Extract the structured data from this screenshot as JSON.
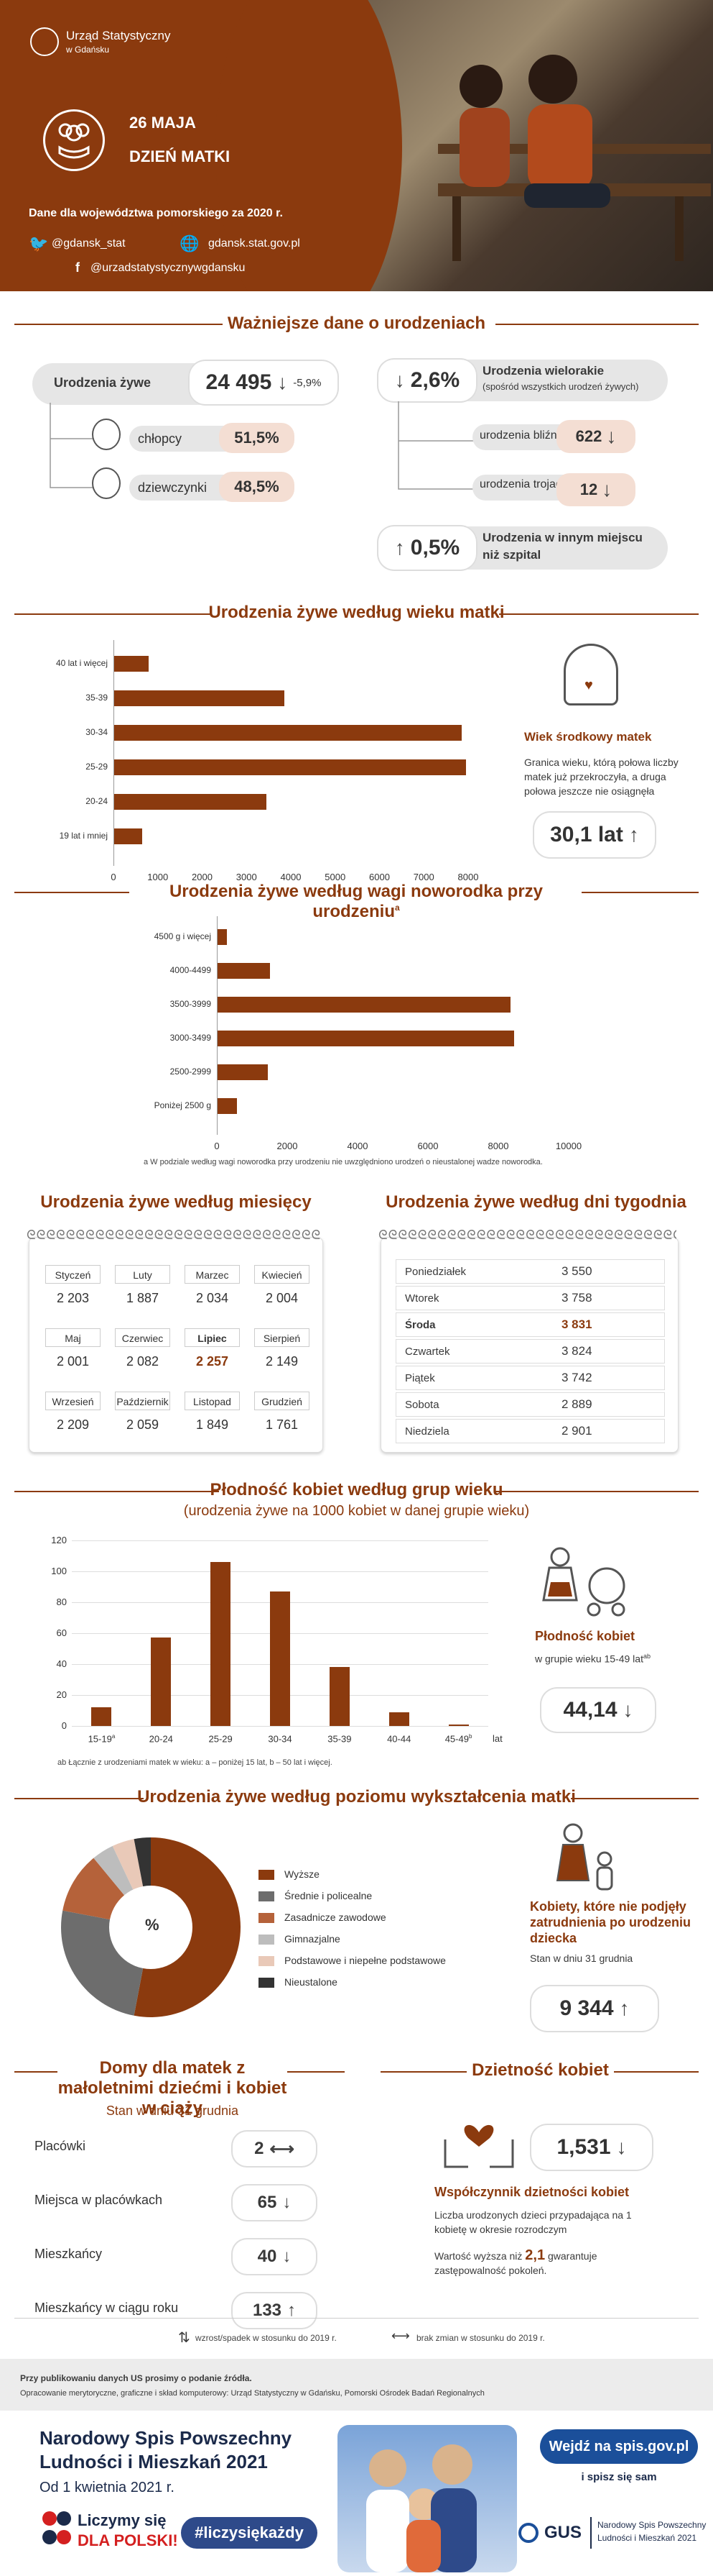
{
  "header": {
    "org": "Urząd Statystyczny",
    "org_sub": "w Gdańsku",
    "date": "26 MAJA",
    "event": "DZIEŃ MATKI",
    "data_note": "Dane dla województwa pomorskiego za 2020 r.",
    "twitter": "@gdansk_stat",
    "website": "gdansk.stat.gov.pl",
    "facebook": "@urzadstatystycznywgdansku"
  },
  "key_data": {
    "title": "Ważniejsze dane o urodzeniach",
    "live_births_label": "Urodzenia żywe",
    "live_births_value": "24 495",
    "live_births_change": "-5,9%",
    "boys_label": "chłopcy",
    "boys_value": "51,5%",
    "girls_label": "dziewczynki",
    "girls_value": "48,5%",
    "multiple_value": "2,6%",
    "multiple_label": "Urodzenia wielorakie",
    "multiple_sub": "(spośród wszystkich urodzeń żywych)",
    "twins_label": "urodzenia bliźniacze",
    "twins_value": "622",
    "triplets_label": "urodzenia trojacze",
    "triplets_value": "12",
    "outside_value": "0,5%",
    "outside_label": "Urodzenia w innym miejscu niż szpital"
  },
  "age_chart": {
    "title": "Urodzenia żywe według wieku matki",
    "median_title": "Wiek środkowy matek",
    "median_desc": "Granica wieku, którą połowa liczby matek już przekroczyła, a druga połowa jeszcze nie osiągnęła",
    "median_value": "30,1 lat"
  },
  "weight_chart": {
    "title": "Urodzenia żywe według wagi noworodka przy urodzeniu",
    "title_sup": "a",
    "footnote": "a W podziale według wagi noworodka przy urodzeniu nie uwzględniono urodzeń o nieustalonej wadze noworodka."
  },
  "months": {
    "title": "Urodzenia żywe według miesięcy",
    "items": [
      {
        "name": "Styczeń",
        "value": "2 203"
      },
      {
        "name": "Luty",
        "value": "1 887"
      },
      {
        "name": "Marzec",
        "value": "2 034"
      },
      {
        "name": "Kwiecień",
        "value": "2 004"
      },
      {
        "name": "Maj",
        "value": "2 001"
      },
      {
        "name": "Czerwiec",
        "value": "2 082"
      },
      {
        "name": "Lipiec",
        "value": "2 257"
      },
      {
        "name": "Sierpień",
        "value": "2 149"
      },
      {
        "name": "Wrzesień",
        "value": "2 209"
      },
      {
        "name": "Październik",
        "value": "2 059"
      },
      {
        "name": "Listopad",
        "value": "1 849"
      },
      {
        "name": "Grudzień",
        "value": "1 761"
      }
    ]
  },
  "weekdays": {
    "title": "Urodzenia żywe według dni tygodnia",
    "items": [
      {
        "name": "Poniedziałek",
        "value": "3 550"
      },
      {
        "name": "Wtorek",
        "value": "3 758"
      },
      {
        "name": "Środa",
        "value": "3 831"
      },
      {
        "name": "Czwartek",
        "value": "3 824"
      },
      {
        "name": "Piątek",
        "value": "3 742"
      },
      {
        "name": "Sobota",
        "value": "2 889"
      },
      {
        "name": "Niedziela",
        "value": "2 901"
      }
    ]
  },
  "fertility": {
    "title": "Płodność kobiet według grup wieku",
    "subtitle": "(urodzenia żywe na 1000 kobiet w danej grupie wieku)",
    "xunit": "lat",
    "footnote": "ab Łącznie z urodzeniami matek w wieku: a – poniżej 15 lat, b – 50 lat i więcej.",
    "side_title": "Płodność kobiet",
    "side_sub": "w grupie wieku 15-49 lat",
    "side_sup": "ab",
    "side_value": "44,14"
  },
  "education": {
    "title": "Urodzenia żywe według poziomu wykształcenia matki",
    "center": "%",
    "legend": [
      "Wyższe",
      "Średnie i policealne",
      "Zasadnicze zawodowe",
      "Gimnazjalne",
      "Podstawowe i niepełne podstawowe",
      "Nieustalone"
    ],
    "colors": [
      "#8b3a0e",
      "#6d6d6d",
      "#b5623a",
      "#bdbdbd",
      "#e9c9b8",
      "#333333"
    ],
    "side_title": "Kobiety, które nie podjęły zatrudnienia po urodzeniu dziecka",
    "side_sub": "Stan w dniu 31 grudnia",
    "side_value": "9 344"
  },
  "homes": {
    "title": "Domy dla matek z małoletnimi dziećmi i kobiet w ciąży",
    "subtitle": "Stan w dniu 31 grudnia",
    "rows": [
      {
        "label": "Placówki",
        "value": "2",
        "arrow": "⟷"
      },
      {
        "label": "Miejsca w placówkach",
        "value": "65",
        "arrow": "↓"
      },
      {
        "label": "Mieszkańcy",
        "value": "40",
        "arrow": "↓"
      },
      {
        "label": "Mieszkańcy w ciągu roku",
        "value": "133",
        "arrow": "↑"
      }
    ]
  },
  "tfr": {
    "title": "Dzietność kobiet",
    "value": "1,531",
    "label": "Współczynnik dzietności kobiet",
    "desc": "Liczba urodzonych dzieci przypadająca na 1 kobietę w okresie rozrodczym",
    "desc2_pre": "Wartość wyższa niż",
    "desc2_num": "2,1",
    "desc2_post": "gwarantuje zastępowalność pokoleń."
  },
  "legend_note": {
    "up_down": "wzrost/spadek w stosunku do 2019 r.",
    "no_change": "brak zmian w stosunku do 2019 r."
  },
  "footer": {
    "note1": "Przy publikowaniu danych US prosimy o podanie źródła.",
    "note2": "Opracowanie merytoryczne, graficzne i skład komputerowy: Urząd Statystyczny w Gdańsku, Pomorski Ośrodek Badań Regionalnych",
    "nsp_title1": "Narodowy Spis Powszechny",
    "nsp_title2": "Ludności i Mieszkań 2021",
    "nsp_date": "Od 1 kwietnia 2021 r.",
    "liczymy1": "Liczymy się",
    "liczymy2": "DLA POLSKI!",
    "hashtag": "#liczysiękażdy",
    "cta": "Wejdź na spis.gov.pl",
    "cta_sub": "i spisz się sam",
    "gus": "GUS",
    "gus_sub1": "Narodowy Spis Powszechny",
    "gus_sub2": "Ludności i Mieszkań 2021"
  },
  "chart_data": [
    {
      "type": "bar",
      "orientation": "horizontal",
      "title": "Urodzenia żywe według wieku matki",
      "categories": [
        "40 lat i więcej",
        "35-39",
        "30-34",
        "25-29",
        "20-24",
        "19 lat i mniej"
      ],
      "values": [
        800,
        3850,
        7850,
        7950,
        3450,
        650
      ],
      "xlim": [
        0,
        8000
      ],
      "xticks": [
        0,
        1000,
        2000,
        3000,
        4000,
        5000,
        6000,
        7000,
        8000
      ],
      "grid": false
    },
    {
      "type": "bar",
      "orientation": "horizontal",
      "title": "Urodzenia żywe według wagi noworodka przy urodzeniu",
      "categories": [
        "4500 g i więcej",
        "4000-4499",
        "3500-3999",
        "3000-3499",
        "2500-2999",
        "Poniżej 2500 g"
      ],
      "values": [
        280,
        1500,
        8350,
        8450,
        1450,
        580
      ],
      "xlim": [
        0,
        10000
      ],
      "xticks": [
        0,
        2000,
        4000,
        6000,
        8000,
        10000
      ],
      "grid": false
    },
    {
      "type": "bar",
      "orientation": "vertical",
      "title": "Płodność kobiet według grup wieku",
      "categories": [
        "15-19",
        "20-24",
        "25-29",
        "30-34",
        "35-39",
        "40-44",
        "45-49"
      ],
      "category_sup": [
        "a",
        "",
        "",
        "",
        "",
        "",
        "b"
      ],
      "values": [
        12,
        57,
        106,
        87,
        38,
        9,
        1
      ],
      "ylim": [
        0,
        120
      ],
      "yticks": [
        0,
        20,
        40,
        60,
        80,
        100,
        120
      ],
      "grid": true
    },
    {
      "type": "pie",
      "title": "Urodzenia żywe według poziomu wykształcenia matki",
      "labels": [
        "Wyższe",
        "Średnie i policealne",
        "Zasadnicze zawodowe",
        "Gimnazjalne",
        "Podstawowe i niepełne podstawowe",
        "Nieustalone"
      ],
      "values": [
        53,
        25,
        11,
        4,
        4,
        3
      ]
    }
  ]
}
